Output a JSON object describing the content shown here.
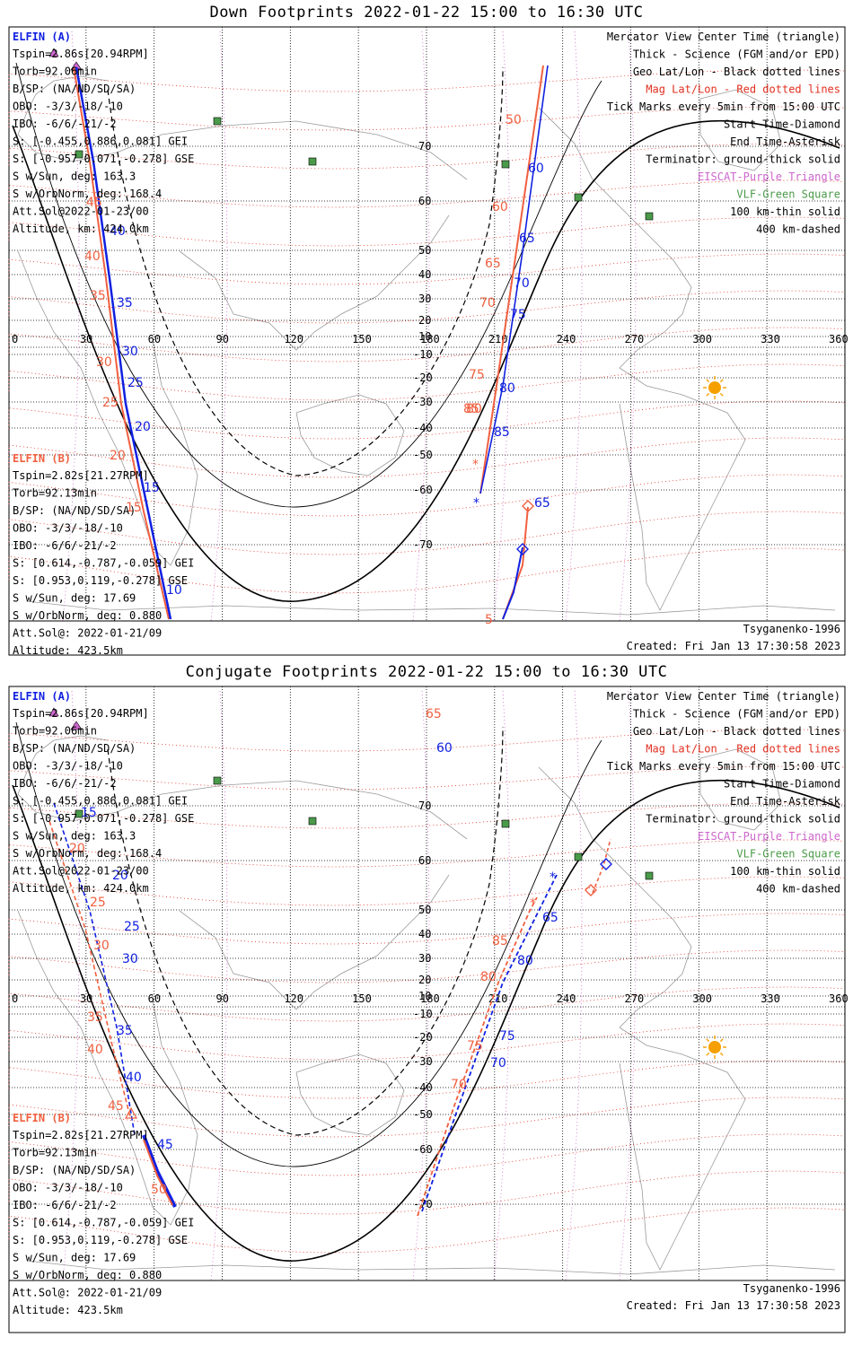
{
  "colors": {
    "elfin_a": "#1020e0",
    "elfin_b": "#f06040",
    "vlf": "#4a9a4a",
    "eiscat": "#cc66cc",
    "sun": "#f5a000",
    "coast": "#9a9a9a"
  },
  "lon_ticks": [
    "0",
    "30",
    "60",
    "90",
    "120",
    "150",
    "180",
    "210",
    "240",
    "270",
    "300",
    "330",
    "360"
  ],
  "lat_ticks": [
    "70",
    "60",
    "50",
    "40",
    "30",
    "20",
    "10",
    "-10",
    "-20",
    "-30",
    "-40",
    "-50",
    "-60",
    "-70"
  ],
  "legend": [
    "Mercator View Center Time (triangle)",
    "Thick - Science (FGM and/or EPD)",
    "Geo Lat/Lon - Black dotted lines",
    "Mag Lat/Lon - Red dotted lines",
    "Tick Marks every 5min from 15:00 UTC",
    "Start Time-Diamond",
    "End Time-Asterisk",
    "Terminator: ground-thick solid",
    "EISCAT-Purple Triangle",
    "VLF-Green Square",
    "100 km-thin solid",
    "400 km-dashed"
  ],
  "panels": [
    {
      "title": "Down Footprints 2022-01-22 15:00 to 16:30 UTC",
      "elfin_a": {
        "name": "ELFIN (A)",
        "lines": [
          "Tspin=2.86s[20.94RPM]",
          "Torb=92.06min",
          "B/SP: (NA/ND/SD/SA)",
          "OBO: -3/3/-18/-10",
          "IBO: -6/6/-21/-2",
          "S: [-0.455,0.886,0.081] GEI",
          "S: [-0.957,0.071,-0.278] GSE",
          "S w/Sun, deg: 163.3",
          "S w/OrbNorm, deg: 168.4",
          "Att.Sol@2022-01-23/00",
          "Altitude, km: 424.0km"
        ]
      },
      "elfin_b": {
        "name": "ELFIN (B)",
        "lines": [
          "Tspin=2.82s[21.27RPM]",
          "Torb=92.13min",
          "B/SP: (NA/ND/SD/SA)",
          "OBO: -3/3/-18/-10",
          "IBO: -6/6/-21/-2",
          "S: [0.614,-0.787,-0.059] GEI",
          "S: [0.953,0.119,-0.278] GSE",
          "S w/Sun, deg: 17.69",
          "S w/OrbNorm, deg: 0.880",
          "Att.Sol@: 2022-01-21/09",
          "Altitude: 423.5km"
        ]
      },
      "model": "Tsyganenko-1996",
      "created": "Created: Fri Jan 13 17:30:58 2023",
      "track_labels": {
        "a_west": [
          "40",
          "35",
          "30",
          "25",
          "20",
          "15",
          "10"
        ],
        "b_west": [
          "45",
          "40",
          "35",
          "30",
          "25",
          "20",
          "15"
        ],
        "a_east": [
          "60",
          "65",
          "70",
          "75",
          "80",
          "85"
        ],
        "b_east": [
          "50",
          "60",
          "65",
          "70",
          "75",
          "80",
          "85",
          "5"
        ]
      }
    },
    {
      "title": "Conjugate Footprints 2022-01-22 15:00 to 16:30 UTC",
      "elfin_a": {
        "name": "ELFIN (A)",
        "lines": [
          "Tspin=2.86s[20.94RPM]",
          "Torb=92.06min",
          "B/SP: (NA/ND/SD/SA)",
          "OBO: -3/3/-18/-10",
          "IBO: -6/6/-21/-2",
          "S: [-0.455,0.886,0.081] GEI",
          "S: [-0.957,0.071,-0.278] GSE",
          "S w/Sun, deg: 163.3",
          "S w/OrbNorm, deg: 168.4",
          "Att.Sol@2022-01-23/00",
          "Altitude, km: 424.0km"
        ]
      },
      "elfin_b": {
        "name": "ELFIN (B)",
        "lines": [
          "Tspin=2.82s[21.27RPM]",
          "Torb=92.13min",
          "B/SP: (NA/ND/SD/SA)",
          "OBO: -3/3/-18/-10",
          "IBO: -6/6/-21/-2",
          "S: [0.614,-0.787,-0.059] GEI",
          "S: [0.953,0.119,-0.278] GSE",
          "S w/Sun, deg: 17.69",
          "S w/OrbNorm, deg: 0.880",
          "Att.Sol@: 2022-01-21/09",
          "Altitude: 423.5km"
        ]
      },
      "model": "Tsyganenko-1996",
      "created": "Created: Fri Jan 13 17:30:58 2023",
      "track_labels": {
        "a_west": [
          "15",
          "20",
          "25",
          "30",
          "35",
          "40",
          "45"
        ],
        "b_west": [
          "20",
          "25",
          "30",
          "35",
          "40",
          "45",
          "50"
        ],
        "a_east": [
          "60",
          "65",
          "70",
          "75",
          "80",
          "65"
        ],
        "b_east": [
          "65",
          "70",
          "75",
          "80",
          "85"
        ]
      }
    }
  ]
}
